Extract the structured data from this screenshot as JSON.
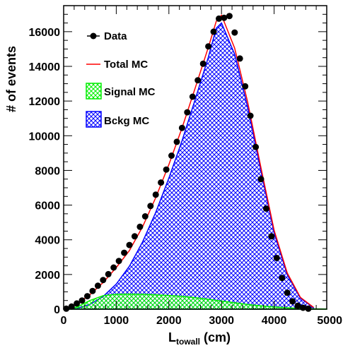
{
  "chart_data": {
    "type": "histogram",
    "xlabel_main": "L",
    "xlabel_sub": "towall",
    "xlabel_unit": " (cm)",
    "ylabel": "# of events",
    "xlim": [
      0,
      5000
    ],
    "ylim": [
      0,
      17500
    ],
    "x_ticks": [
      0,
      1000,
      2000,
      3000,
      4000,
      5000
    ],
    "x_tick_labels": [
      "0",
      "1000",
      "2000",
      "3000",
      "4000",
      "5000"
    ],
    "y_ticks": [
      0,
      2000,
      4000,
      6000,
      8000,
      10000,
      12000,
      14000,
      16000
    ],
    "y_tick_labels": [
      "0",
      "2000",
      "4000",
      "6000",
      "8000",
      "10000",
      "12000",
      "14000",
      "16000"
    ],
    "grid": false,
    "legend_position": "top-left",
    "legend": [
      {
        "label": "Data",
        "style": "marker",
        "color": "#000000"
      },
      {
        "label": "Total MC",
        "style": "line",
        "color": "#ff0000"
      },
      {
        "label": "Signal MC",
        "style": "hatch",
        "color": "#00ee00"
      },
      {
        "label": "Bckg MC",
        "style": "hatch",
        "color": "#0000ff"
      }
    ],
    "data_points": {
      "name": "Data",
      "x": [
        50,
        150,
        250,
        350,
        450,
        550,
        650,
        750,
        850,
        950,
        1050,
        1150,
        1250,
        1350,
        1450,
        1550,
        1650,
        1750,
        1850,
        1950,
        2050,
        2150,
        2250,
        2350,
        2450,
        2550,
        2650,
        2750,
        2850,
        2950,
        3050,
        3150,
        3250,
        3350,
        3450,
        3550,
        3650,
        3750,
        3850,
        3950,
        4050,
        4150,
        4250,
        4350,
        4450,
        4550,
        4650
      ],
      "y": [
        30,
        150,
        330,
        500,
        750,
        1050,
        1350,
        1680,
        2020,
        2400,
        2780,
        3250,
        3700,
        4200,
        4750,
        5350,
        5950,
        6600,
        7300,
        8050,
        8850,
        9650,
        10450,
        11350,
        12250,
        13200,
        14150,
        15150,
        16000,
        16750,
        16800,
        16900,
        15950,
        14450,
        12850,
        11150,
        9350,
        7500,
        5800,
        4200,
        2950,
        1800,
        950,
        450,
        200,
        80,
        30
      ]
    },
    "signal_mc": {
      "name": "Signal MC",
      "x": [
        0,
        250,
        500,
        750,
        1000,
        1250,
        1500,
        1750,
        2000,
        2250,
        2500,
        2750,
        3000,
        3250,
        3500,
        3750,
        4000,
        4250,
        4500,
        4750,
        5000
      ],
      "y": [
        0,
        120,
        500,
        780,
        860,
        870,
        860,
        830,
        790,
        740,
        660,
        570,
        470,
        370,
        270,
        190,
        130,
        80,
        40,
        20,
        10
      ]
    },
    "background_mc": {
      "name": "Bckg MC",
      "x": [
        0,
        250,
        500,
        750,
        1000,
        1250,
        1500,
        1750,
        2000,
        2250,
        2500,
        2750,
        2900,
        3000,
        3250,
        3500,
        3750,
        4000,
        4250,
        4500,
        4750
      ],
      "y": [
        0,
        40,
        280,
        730,
        1450,
        2480,
        3880,
        5580,
        7560,
        9710,
        12090,
        14530,
        16200,
        16500,
        14700,
        11600,
        7950,
        4400,
        1980,
        630,
        80
      ]
    },
    "total_mc": {
      "name": "Total MC",
      "x": [
        0,
        250,
        500,
        750,
        1000,
        1250,
        1500,
        1750,
        2000,
        2250,
        2500,
        2750,
        2900,
        3000,
        3250,
        3500,
        3750,
        4000,
        4250,
        4500,
        4750
      ],
      "y": [
        30,
        300,
        840,
        1540,
        2400,
        3380,
        4750,
        6430,
        8340,
        10450,
        12750,
        15100,
        16600,
        16950,
        15050,
        11900,
        8150,
        4550,
        2080,
        680,
        100
      ]
    }
  }
}
